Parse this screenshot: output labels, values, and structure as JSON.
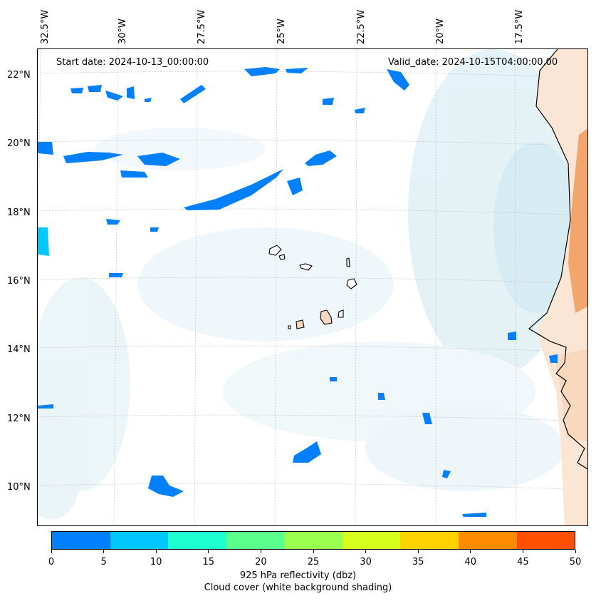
{
  "map": {
    "start_date": "Start date: 2024-10-13_00:00:00",
    "valid_date": "Valid_date: 2024-10-15T04:00:00.00",
    "lon_labels": [
      "32.5°W",
      "30°W",
      "27.5°W",
      "25°W",
      "22.5°W",
      "20°W",
      "17.5°W"
    ],
    "lat_labels": [
      "22°N",
      "20°N",
      "18°N",
      "16°N",
      "14°N",
      "12°N",
      "10°N"
    ]
  },
  "colorbar": {
    "title": "925 hPa reflectivity (dbz)",
    "subtitle": "Cloud cover (white background shading)",
    "ticks": [
      "0",
      "5",
      "10",
      "15",
      "20",
      "25",
      "30",
      "35",
      "40",
      "45",
      "50"
    ],
    "colors": [
      "#0080ff",
      "#00c8ff",
      "#1effd2",
      "#5aff8c",
      "#9bff50",
      "#d7ff1e",
      "#ffd200",
      "#ff8c00",
      "#ff5000"
    ]
  },
  "colors": {
    "land_fill": "#f8d9c0",
    "coast_warm": "#f3a56e",
    "cloud_shade": "#cfe8f0",
    "refl_blue": "#0080ff"
  }
}
